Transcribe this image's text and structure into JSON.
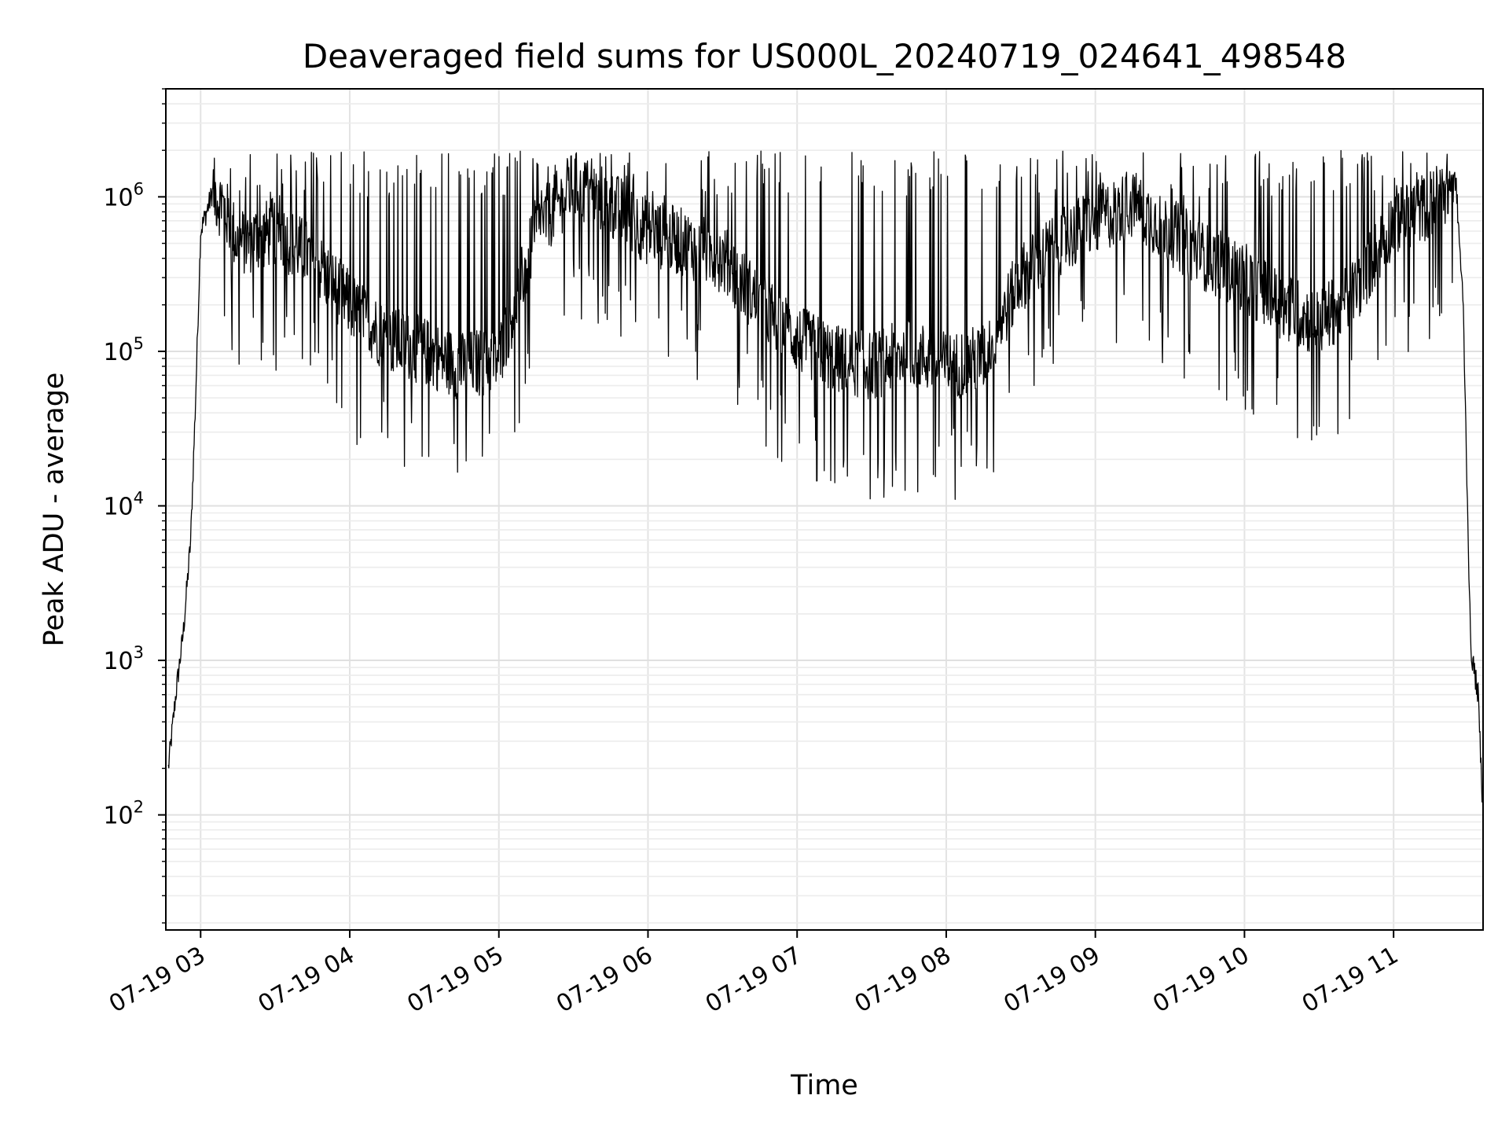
{
  "chart_data": {
    "type": "line",
    "title": "Deaveraged field sums for US000L_20240719_024641_498548",
    "xlabel": "Time",
    "ylabel": "Peak ADU - average",
    "yscale": "log",
    "ylim": [
      18,
      5000000
    ],
    "y_ticks": [
      {
        "value": 100,
        "base": "10",
        "exp": "2"
      },
      {
        "value": 1000,
        "base": "10",
        "exp": "3"
      },
      {
        "value": 10000,
        "base": "10",
        "exp": "4"
      },
      {
        "value": 100000,
        "base": "10",
        "exp": "5"
      },
      {
        "value": 1000000,
        "base": "10",
        "exp": "6"
      }
    ],
    "xlim": [
      "07-19 02:46",
      "07-19 11:36"
    ],
    "x_ticks": [
      "07-19 03",
      "07-19 04",
      "07-19 05",
      "07-19 06",
      "07-19 07",
      "07-19 08",
      "07-19 09",
      "07-19 10",
      "07-19 11"
    ],
    "grid": true,
    "line_color": "#000000",
    "series": [
      {
        "x": [
          "07-19 02:47",
          "07-19 02:50",
          "07-19 02:53",
          "07-19 02:56",
          "07-19 02:58",
          "07-19 03:00",
          "07-19 03:05",
          "07-19 03:10",
          "07-19 03:15",
          "07-19 03:30",
          "07-19 03:45",
          "07-19 04:00",
          "07-19 04:15",
          "07-19 04:30",
          "07-19 04:45",
          "07-19 05:00",
          "07-19 05:15",
          "07-19 05:30",
          "07-19 05:45",
          "07-19 06:00",
          "07-19 06:15",
          "07-19 06:30",
          "07-19 06:45",
          "07-19 07:00",
          "07-19 07:15",
          "07-19 07:30",
          "07-19 07:45",
          "07-19 08:00",
          "07-19 08:15",
          "07-19 08:30",
          "07-19 08:45",
          "07-19 09:00",
          "07-19 09:15",
          "07-19 09:30",
          "07-19 09:45",
          "07-19 10:00",
          "07-19 10:15",
          "07-19 10:30",
          "07-19 10:45",
          "07-19 11:00",
          "07-19 11:15",
          "07-19 11:25",
          "07-19 11:28",
          "07-19 11:31",
          "07-19 11:34",
          "07-19 11:36"
        ],
        "values": [
          200,
          600,
          1500,
          6000,
          50000,
          600000,
          1100000,
          800000,
          500000,
          600000,
          400000,
          200000,
          120000,
          100000,
          80000,
          90000,
          600000,
          1200000,
          900000,
          600000,
          500000,
          400000,
          200000,
          120000,
          90000,
          80000,
          100000,
          80000,
          90000,
          300000,
          500000,
          700000,
          900000,
          600000,
          400000,
          300000,
          200000,
          150000,
          250000,
          700000,
          900000,
          1300000,
          200000,
          1200,
          600,
          100
        ]
      }
    ]
  }
}
